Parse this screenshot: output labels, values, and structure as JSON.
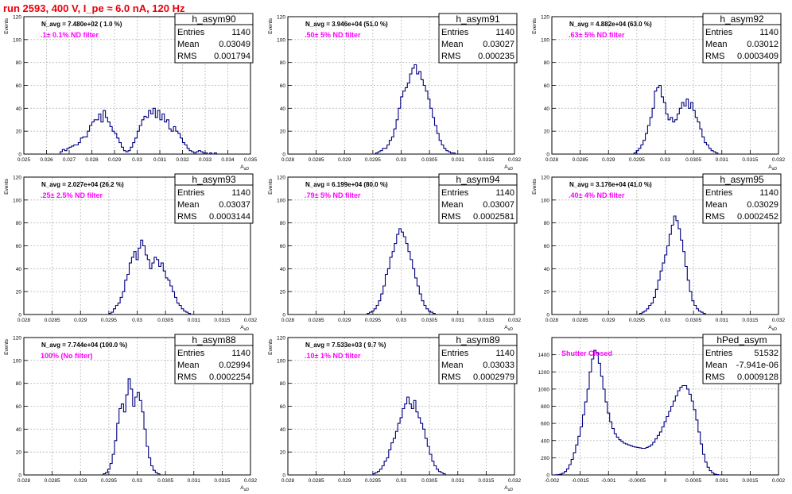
{
  "canvas_title": "run 2593,   400 V, I_pe ≈ 6.0 nA, 120 Hz",
  "colors": {
    "title": "#e8000b",
    "histogram": "#000080",
    "filter_label": "#ff00ff",
    "grid": "#b7b7b7"
  },
  "stats_labels": {
    "entries": "Entries",
    "mean": "Mean",
    "rms": "RMS"
  },
  "chart_data": [
    {
      "type": "bar",
      "name": "h_asym90",
      "annotation": "N_avg = 7.480e+02 ( 1.0 %)",
      "filter": ".1± 0.1% ND filter",
      "stats": {
        "entries": "1140",
        "mean": "0.03049",
        "rms": "0.001794"
      },
      "ylabel": "Events",
      "xlabel": "A_uD",
      "xlim": [
        0.025,
        0.035
      ],
      "ylim": [
        0,
        120
      ],
      "xticks": [
        0.025,
        0.026,
        0.027,
        0.028,
        0.029,
        0.03,
        0.031,
        0.032,
        0.033,
        0.034,
        0.035
      ],
      "xtick_labels": [
        "0.025",
        "0.026",
        "0.027",
        "0.028",
        "0.029",
        "0.03",
        "0.031",
        "0.032",
        "0.033",
        "0.034",
        "0.035"
      ],
      "yticks": [
        0,
        20,
        40,
        60,
        80,
        100,
        120
      ],
      "bins": {
        "start": 0.0266,
        "width": 0.0001,
        "values": [
          2,
          4,
          3,
          5,
          6,
          7,
          8,
          8,
          10,
          14,
          15,
          15,
          20,
          25,
          28,
          30,
          30,
          35,
          28,
          38,
          32,
          28,
          24,
          20,
          18,
          14,
          10,
          6,
          3,
          2,
          3,
          6,
          10,
          14,
          20,
          25,
          30,
          33,
          32,
          38,
          35,
          40,
          32,
          38,
          30,
          35,
          28,
          30,
          22,
          20,
          24,
          20,
          18,
          14,
          10,
          8,
          5,
          3,
          2,
          1,
          2,
          3,
          2,
          1,
          1,
          0,
          1,
          0,
          1
        ]
      }
    },
    {
      "type": "bar",
      "name": "h_asym91",
      "annotation": "N_avg = 3.946e+04 (51.0 %)",
      "filter": ".50± 5% ND filter",
      "stats": {
        "entries": "1140",
        "mean": "0.03027",
        "rms": "0.000235"
      },
      "ylabel": "Events",
      "xlabel": "A_uD",
      "xlim": [
        0.028,
        0.032
      ],
      "ylim": [
        0,
        120
      ],
      "xticks": [
        0.028,
        0.0285,
        0.029,
        0.0295,
        0.03,
        0.0305,
        0.031,
        0.0315,
        0.032
      ],
      "xtick_labels": [
        "0.028",
        "0.0285",
        "0.029",
        "0.0295",
        "0.03",
        "0.0305",
        "0.031",
        "0.0315",
        "0.032"
      ],
      "yticks": [
        0,
        20,
        40,
        60,
        80,
        100,
        120
      ],
      "bins": {
        "start": 0.02955,
        "width": 4e-05,
        "values": [
          1,
          2,
          3,
          5,
          5,
          8,
          12,
          15,
          22,
          30,
          40,
          50,
          55,
          58,
          62,
          70,
          75,
          78,
          70,
          72,
          65,
          60,
          55,
          48,
          40,
          32,
          25,
          18,
          12,
          8,
          5,
          3,
          2,
          1,
          1
        ]
      }
    },
    {
      "type": "bar",
      "name": "h_asym92",
      "annotation": "N_avg = 4.882e+04 (63.0 %)",
      "filter": ".63± 5% ND filter",
      "stats": {
        "entries": "1140",
        "mean": "0.03012",
        "rms": "0.0003409"
      },
      "ylabel": "Events",
      "xlabel": "A_uD",
      "xlim": [
        0.028,
        0.032
      ],
      "ylim": [
        0,
        120
      ],
      "xticks": [
        0.028,
        0.0285,
        0.029,
        0.0295,
        0.03,
        0.0305,
        0.031,
        0.0315,
        0.032
      ],
      "xtick_labels": [
        "0.028",
        "0.0285",
        "0.029",
        "0.0295",
        "0.03",
        "0.0305",
        "0.031",
        "0.0315",
        "0.032"
      ],
      "yticks": [
        0,
        20,
        40,
        60,
        80,
        100,
        120
      ],
      "bins": {
        "start": 0.02945,
        "width": 4e-05,
        "values": [
          1,
          3,
          5,
          8,
          12,
          18,
          25,
          32,
          40,
          55,
          58,
          60,
          50,
          45,
          35,
          30,
          32,
          28,
          30,
          35,
          40,
          45,
          42,
          48,
          40,
          45,
          38,
          32,
          28,
          22,
          15,
          10,
          8,
          5,
          3,
          2,
          1
        ]
      }
    },
    {
      "type": "bar",
      "name": "h_asym93",
      "annotation": "N_avg = 2.027e+04 (26.2 %)",
      "filter": ".25± 2.5% ND filter",
      "stats": {
        "entries": "1140",
        "mean": "0.03037",
        "rms": "0.0003144"
      },
      "ylabel": "Events",
      "xlabel": "A_uD",
      "xlim": [
        0.028,
        0.032
      ],
      "ylim": [
        0,
        120
      ],
      "xticks": [
        0.028,
        0.0285,
        0.029,
        0.0295,
        0.03,
        0.0305,
        0.031,
        0.0315,
        0.032
      ],
      "xtick_labels": [
        "0.028",
        "0.0285",
        "0.029",
        "0.0295",
        "0.03",
        "0.0305",
        "0.031",
        "0.0315",
        "0.032"
      ],
      "yticks": [
        0,
        20,
        40,
        60,
        80,
        100,
        120
      ],
      "bins": {
        "start": 0.0295,
        "width": 4e-05,
        "values": [
          1,
          2,
          5,
          8,
          10,
          15,
          20,
          30,
          35,
          45,
          50,
          55,
          48,
          58,
          65,
          60,
          52,
          48,
          40,
          45,
          50,
          48,
          42,
          45,
          38,
          32,
          30,
          25,
          20,
          15,
          10,
          8,
          5,
          3,
          2,
          1
        ]
      }
    },
    {
      "type": "bar",
      "name": "h_asym94",
      "annotation": "N_avg = 6.199e+04 (80.0 %)",
      "filter": ".79± 5% ND filter",
      "stats": {
        "entries": "1140",
        "mean": "0.03007",
        "rms": "0.0002581"
      },
      "ylabel": "Events",
      "xlabel": "A_uD",
      "xlim": [
        0.028,
        0.032
      ],
      "ylim": [
        0,
        120
      ],
      "xticks": [
        0.028,
        0.0285,
        0.029,
        0.0295,
        0.03,
        0.0305,
        0.031,
        0.0315,
        0.032
      ],
      "xtick_labels": [
        "0.028",
        "0.0285",
        "0.029",
        "0.0295",
        "0.03",
        "0.0305",
        "0.031",
        "0.0315",
        "0.032"
      ],
      "yticks": [
        0,
        20,
        40,
        60,
        80,
        100,
        120
      ],
      "bins": {
        "start": 0.0294,
        "width": 4e-05,
        "values": [
          1,
          2,
          3,
          5,
          8,
          12,
          18,
          25,
          35,
          40,
          50,
          55,
          62,
          70,
          75,
          72,
          68,
          62,
          55,
          48,
          40,
          32,
          25,
          18,
          12,
          8,
          5,
          3,
          2,
          1
        ]
      }
    },
    {
      "type": "bar",
      "name": "h_asym95",
      "annotation": "N_avg = 3.176e+04 (41.0 %)",
      "filter": ".40± 4% ND filter",
      "stats": {
        "entries": "1140",
        "mean": "0.03029",
        "rms": "0.0002452"
      },
      "ylabel": "Events",
      "xlabel": "A_uD",
      "xlim": [
        0.028,
        0.032
      ],
      "ylim": [
        0,
        120
      ],
      "xticks": [
        0.028,
        0.0285,
        0.029,
        0.0295,
        0.03,
        0.0305,
        0.031,
        0.0315,
        0.032
      ],
      "xtick_labels": [
        "0.028",
        "0.0285",
        "0.029",
        "0.0295",
        "0.03",
        "0.0305",
        "0.031",
        "0.0315",
        "0.032"
      ],
      "yticks": [
        0,
        20,
        40,
        60,
        80,
        100,
        120
      ],
      "bins": {
        "start": 0.02955,
        "width": 4e-05,
        "values": [
          1,
          2,
          3,
          5,
          8,
          10,
          15,
          22,
          30,
          38,
          45,
          52,
          60,
          70,
          78,
          86,
          82,
          75,
          65,
          55,
          42,
          30,
          20,
          12,
          8,
          5,
          3,
          2,
          1
        ]
      }
    },
    {
      "type": "bar",
      "name": "h_asym88",
      "annotation": "N_avg = 7.744e+04 (100.0 %)",
      "filter": "100% (No filter)",
      "stats": {
        "entries": "1140",
        "mean": "0.02994",
        "rms": "0.0002254"
      },
      "ylabel": "Events",
      "xlabel": "A_uD",
      "xlim": [
        0.028,
        0.032
      ],
      "ylim": [
        0,
        120
      ],
      "xticks": [
        0.028,
        0.0285,
        0.029,
        0.0295,
        0.03,
        0.0305,
        0.031,
        0.0315,
        0.032
      ],
      "xtick_labels": [
        "0.028",
        "0.0285",
        "0.029",
        "0.0295",
        "0.03",
        "0.0305",
        "0.031",
        "0.0315",
        "0.032"
      ],
      "yticks": [
        0,
        20,
        40,
        60,
        80,
        100,
        120
      ],
      "bins": {
        "start": 0.0294,
        "width": 4e-05,
        "values": [
          1,
          2,
          5,
          10,
          18,
          30,
          45,
          58,
          62,
          55,
          70,
          84,
          75,
          60,
          68,
          72,
          65,
          55,
          40,
          25,
          15,
          8,
          4,
          2,
          1
        ]
      }
    },
    {
      "type": "bar",
      "name": "h_asym89",
      "annotation": "N_avg = 7.533e+03 ( 9.7 %)",
      "filter": ".10± 1% ND filter",
      "stats": {
        "entries": "1140",
        "mean": "0.03033",
        "rms": "0.0002979"
      },
      "ylabel": "Events",
      "xlabel": "A_uD",
      "xlim": [
        0.028,
        0.032
      ],
      "ylim": [
        0,
        120
      ],
      "xticks": [
        0.028,
        0.0285,
        0.029,
        0.0295,
        0.03,
        0.0305,
        0.031,
        0.0315,
        0.032
      ],
      "xtick_labels": [
        "0.028",
        "0.0285",
        "0.029",
        "0.0295",
        "0.03",
        "0.0305",
        "0.031",
        "0.0315",
        "0.032"
      ],
      "yticks": [
        0,
        20,
        40,
        60,
        80,
        100,
        120
      ],
      "bins": {
        "start": 0.0295,
        "width": 4e-05,
        "values": [
          1,
          2,
          3,
          5,
          8,
          12,
          15,
          22,
          28,
          32,
          38,
          45,
          50,
          58,
          62,
          68,
          62,
          58,
          65,
          55,
          50,
          45,
          40,
          32,
          25,
          18,
          12,
          8,
          5,
          3,
          2,
          1
        ]
      }
    },
    {
      "type": "bar",
      "name": "hPed_asym",
      "annotation": "",
      "filter": "Shutter Closed",
      "stats": {
        "entries": "51532",
        "mean": "-7.941e-06",
        "rms": "0.0009128"
      },
      "ylabel": "",
      "xlabel": "",
      "xlim": [
        -0.002,
        0.002
      ],
      "ylim": [
        0,
        1600
      ],
      "xticks": [
        -0.002,
        -0.0015,
        -0.001,
        -0.0005,
        0,
        0.0005,
        0.001,
        0.0015,
        0.002
      ],
      "xtick_labels": [
        "-0.002",
        "-0.0015",
        "-0.001",
        "-0.0005",
        "0",
        "0.0005",
        "0.001",
        "0.0015",
        "0.002"
      ],
      "yticks": [
        0,
        200,
        400,
        600,
        800,
        1000,
        1200,
        1400
      ],
      "bins": {
        "start": -0.00194,
        "width": 4e-05,
        "values": [
          2,
          5,
          10,
          20,
          40,
          70,
          120,
          180,
          260,
          350,
          450,
          560,
          700,
          850,
          1000,
          1200,
          1350,
          1450,
          1420,
          1300,
          1150,
          1000,
          850,
          720,
          620,
          540,
          480,
          440,
          410,
          390,
          370,
          360,
          350,
          340,
          330,
          325,
          320,
          315,
          310,
          310,
          320,
          330,
          350,
          380,
          420,
          460,
          500,
          560,
          620,
          680,
          740,
          800,
          860,
          920,
          980,
          1020,
          1040,
          1040,
          1000,
          940,
          860,
          760,
          640,
          500,
          360,
          240,
          150,
          90,
          50,
          25,
          10,
          5
        ]
      }
    }
  ]
}
